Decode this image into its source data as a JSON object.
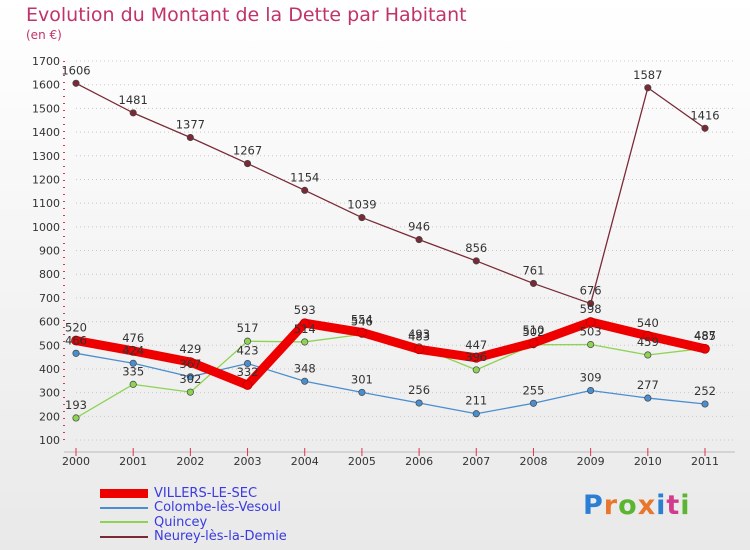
{
  "title": "Evolution du Montant de la Dette par Habitant",
  "subtitle": "(en €)",
  "brand": {
    "text": "Proxiti",
    "colors": [
      "#2a7fd4",
      "#e8772e",
      "#5bb531",
      "#e8772e",
      "#2a7fd4",
      "#d23c8c",
      "#5bb531"
    ]
  },
  "chart_data": {
    "type": "line",
    "title": "Evolution du Montant de la Dette par Habitant",
    "subtitle": "(en €)",
    "categories": [
      "2000",
      "2001",
      "2002",
      "2003",
      "2004",
      "2005",
      "2006",
      "2007",
      "2008",
      "2009",
      "2010",
      "2011"
    ],
    "ylim": [
      100,
      1700
    ],
    "yticks": [
      100,
      200,
      300,
      400,
      500,
      600,
      700,
      800,
      900,
      1000,
      1100,
      1200,
      1300,
      1400,
      1500,
      1600,
      1700
    ],
    "grid": "horizontal dotted",
    "legend_position": "bottom-left",
    "series": [
      {
        "name": "VILLERS-LE-SEC",
        "color": "#ee0000",
        "values": [
          520,
          476,
          429,
          332,
          593,
          554,
          483,
          447,
          510,
          598,
          540,
          485
        ],
        "labels": [
          "520",
          "476",
          "429",
          "332",
          "593",
          "554",
          "483",
          "447",
          "510",
          "598",
          "540",
          "485"
        ]
      },
      {
        "name": "Colombe-lès-Vesoul",
        "color": "#4a8ed0",
        "values": [
          466,
          424,
          367,
          423,
          348,
          301,
          256,
          211,
          255,
          309,
          277,
          252
        ],
        "labels": [
          "466",
          "424",
          "367",
          "423",
          "348",
          "301",
          "256",
          "211",
          "255",
          "309",
          "277",
          "252"
        ]
      },
      {
        "name": "Quincey",
        "color": "#8ed354",
        "values": [
          193,
          335,
          302,
          517,
          514,
          546,
          493,
          396,
          502,
          503,
          459,
          487
        ],
        "labels": [
          "193",
          "335",
          "302",
          "517",
          "514",
          "546",
          "493",
          "396",
          "502",
          "503",
          "459",
          "487"
        ]
      },
      {
        "name": "Neurey-lès-la-Demie",
        "color": "#7a2a35",
        "values": [
          1606,
          1481,
          1377,
          1267,
          1154,
          1039,
          946,
          856,
          761,
          676,
          1587,
          1416
        ],
        "labels": [
          "1606",
          "1481",
          "1377",
          "1267",
          "1154",
          "1039",
          "946",
          "856",
          "761",
          "676",
          "1587",
          "1416"
        ]
      }
    ]
  }
}
